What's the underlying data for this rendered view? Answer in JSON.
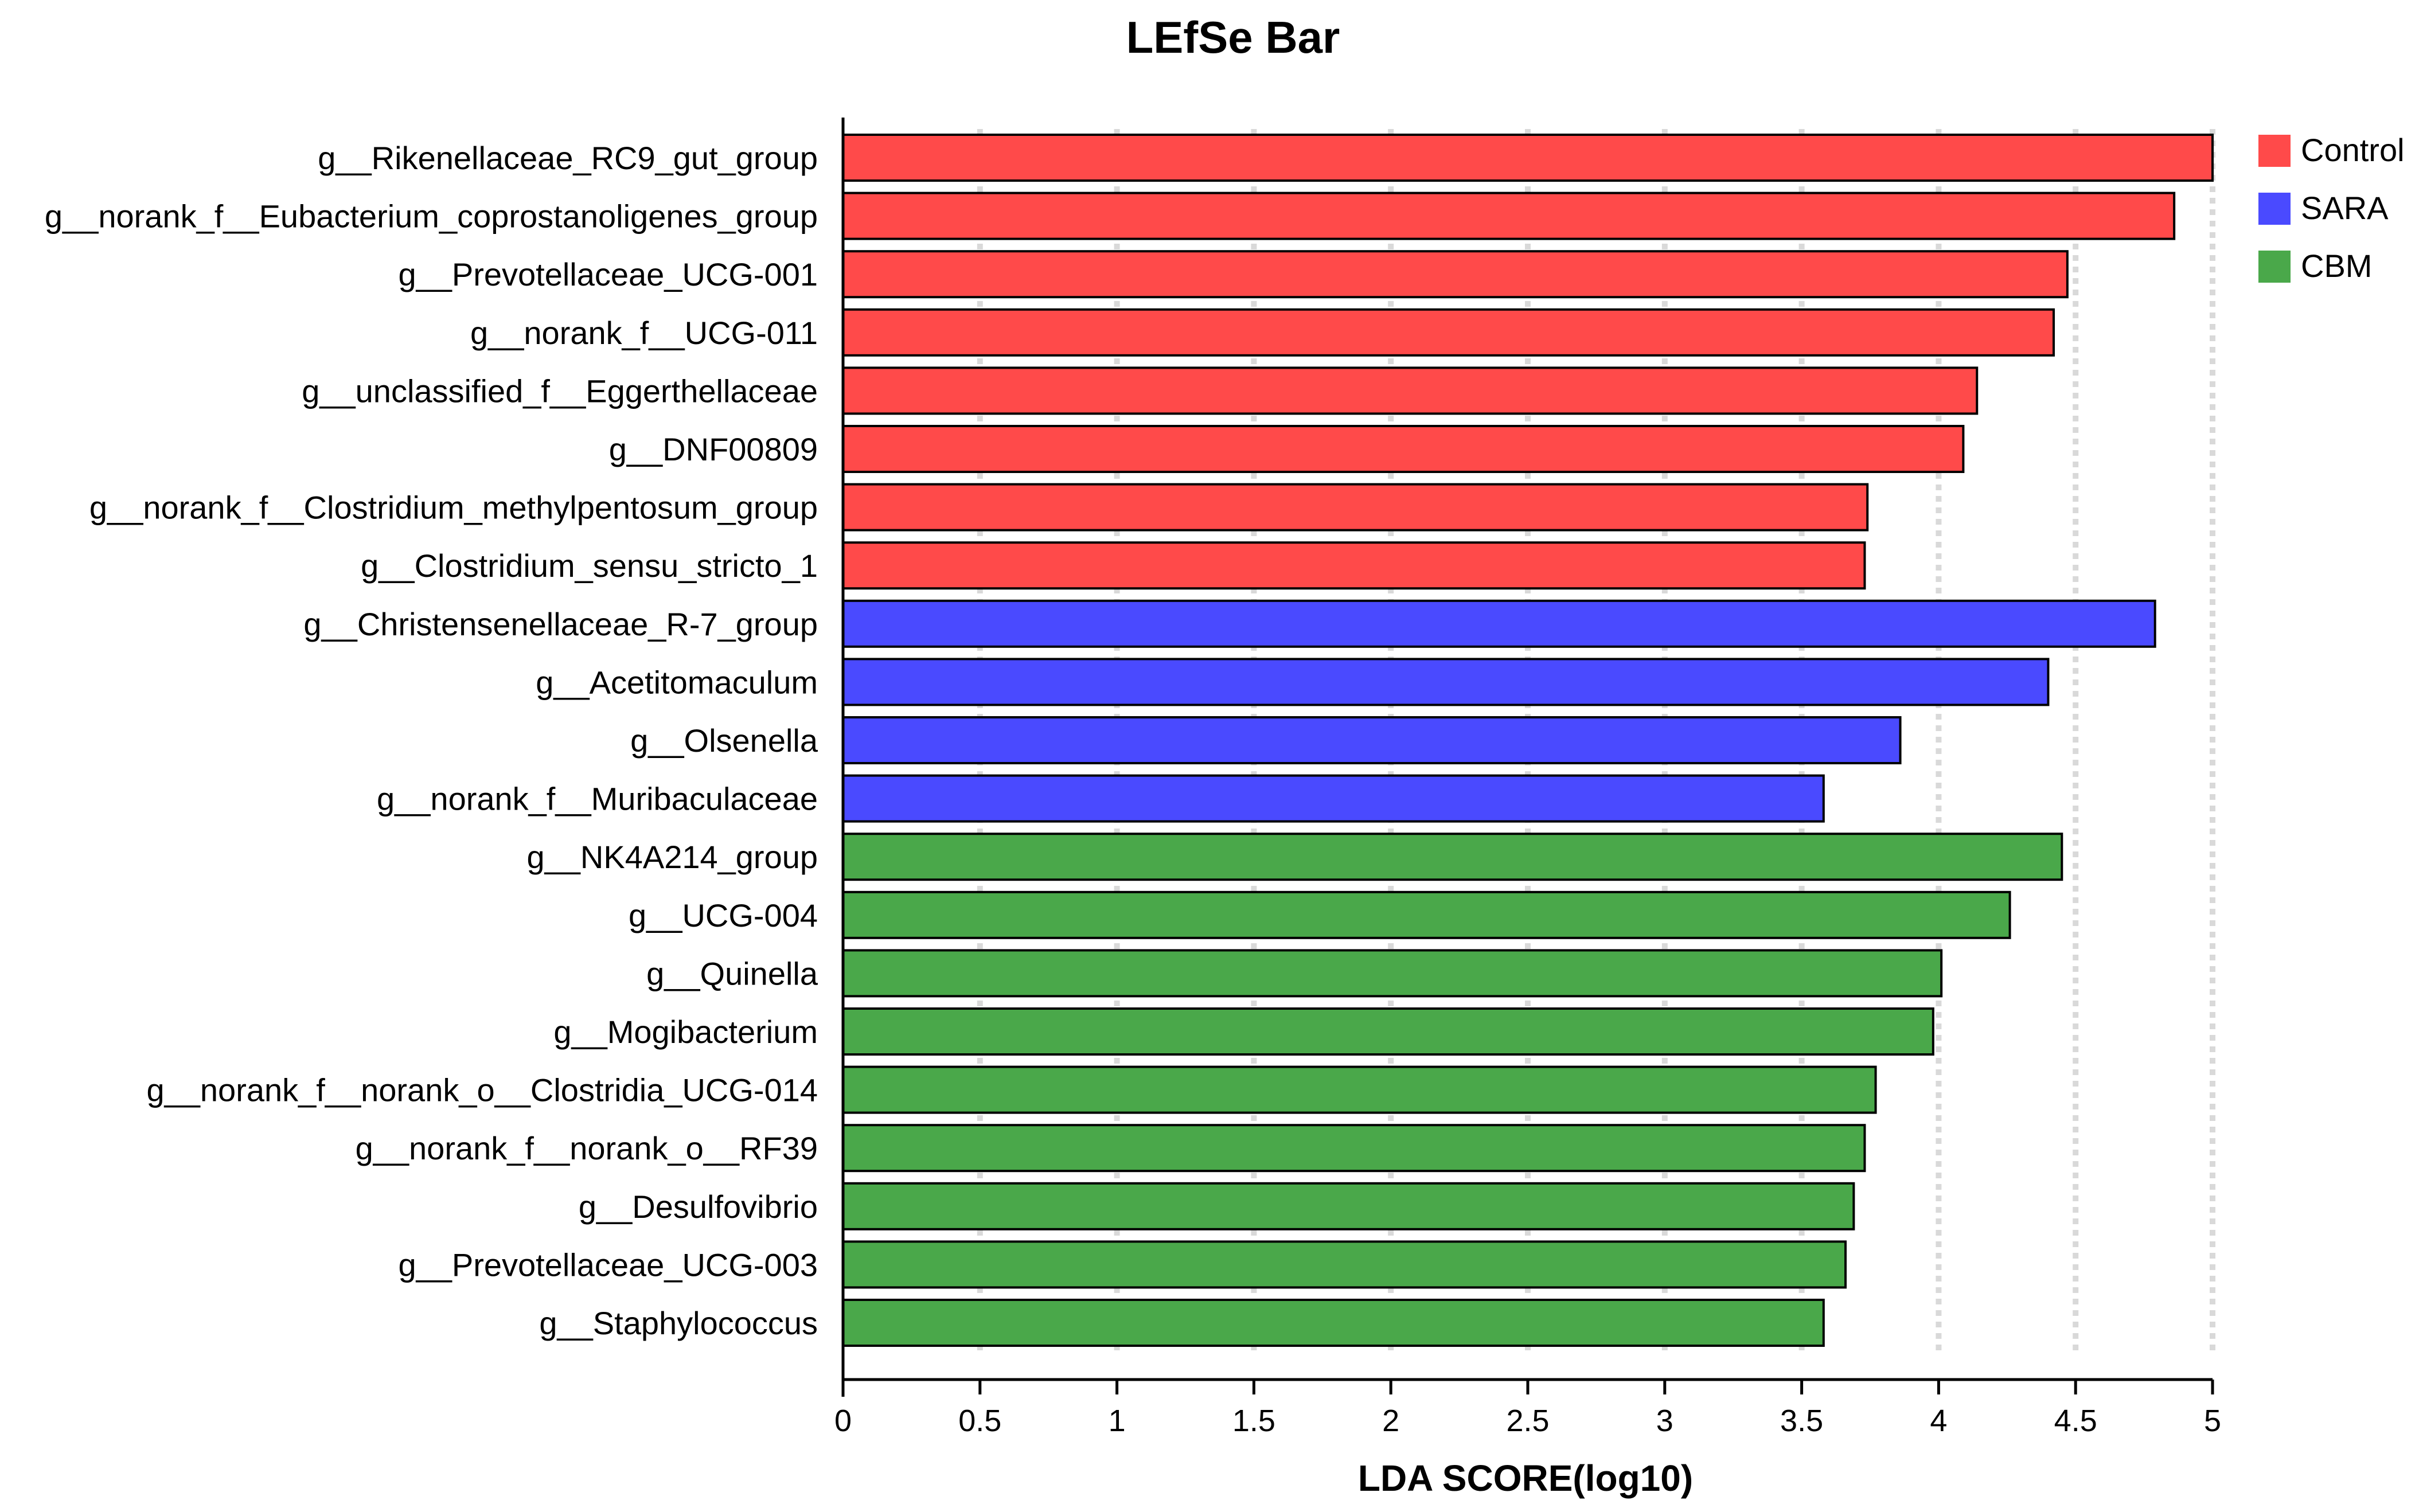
{
  "chart_data": {
    "type": "bar",
    "orientation": "horizontal",
    "title": "LEfSe Bar",
    "xlabel": "LDA SCORE(log10)",
    "ylabel": "",
    "xlim": [
      0,
      5
    ],
    "xticks": [
      0,
      0.5,
      1,
      1.5,
      2,
      2.5,
      3,
      3.5,
      4,
      4.5,
      5
    ],
    "xtick_labels": [
      "0",
      "0.5",
      "1",
      "1.5",
      "2",
      "2.5",
      "3",
      "3.5",
      "4",
      "4.5",
      "5"
    ],
    "grid": "vertical dotted at x ticks",
    "legend": {
      "position": "top-right",
      "entries": [
        {
          "name": "Control",
          "color": "#ff4a4a"
        },
        {
          "name": "SARA",
          "color": "#4a4aff"
        },
        {
          "name": "CBM",
          "color": "#4aa84a"
        }
      ]
    },
    "bars": [
      {
        "label": "g__Rikenellaceae_RC9_gut_group",
        "value": 5.0,
        "group": "Control"
      },
      {
        "label": "g__norank_f__Eubacterium_coprostanoligenes_group",
        "value": 4.86,
        "group": "Control"
      },
      {
        "label": "g__Prevotellaceae_UCG-001",
        "value": 4.47,
        "group": "Control"
      },
      {
        "label": "g__norank_f__UCG-011",
        "value": 4.42,
        "group": "Control"
      },
      {
        "label": "g__unclassified_f__Eggerthellaceae",
        "value": 4.14,
        "group": "Control"
      },
      {
        "label": "g__DNF00809",
        "value": 4.09,
        "group": "Control"
      },
      {
        "label": "g__norank_f__Clostridium_methylpentosum_group",
        "value": 3.74,
        "group": "Control"
      },
      {
        "label": "g__Clostridium_sensu_stricto_1",
        "value": 3.73,
        "group": "Control"
      },
      {
        "label": "g__Christensenellaceae_R-7_group",
        "value": 4.79,
        "group": "SARA"
      },
      {
        "label": "g__Acetitomaculum",
        "value": 4.4,
        "group": "SARA"
      },
      {
        "label": "g__Olsenella",
        "value": 3.86,
        "group": "SARA"
      },
      {
        "label": "g__norank_f__Muribaculaceae",
        "value": 3.58,
        "group": "SARA"
      },
      {
        "label": "g__NK4A214_group",
        "value": 4.45,
        "group": "CBM"
      },
      {
        "label": "g__UCG-004",
        "value": 4.26,
        "group": "CBM"
      },
      {
        "label": "g__Quinella",
        "value": 4.01,
        "group": "CBM"
      },
      {
        "label": "g__Mogibacterium",
        "value": 3.98,
        "group": "CBM"
      },
      {
        "label": "g__norank_f__norank_o__Clostridia_UCG-014",
        "value": 3.77,
        "group": "CBM"
      },
      {
        "label": "g__norank_f__norank_o__RF39",
        "value": 3.73,
        "group": "CBM"
      },
      {
        "label": "g__Desulfovibrio",
        "value": 3.69,
        "group": "CBM"
      },
      {
        "label": "g__Prevotellaceae_UCG-003",
        "value": 3.66,
        "group": "CBM"
      },
      {
        "label": "g__Staphylococcus",
        "value": 3.58,
        "group": "CBM"
      }
    ]
  }
}
